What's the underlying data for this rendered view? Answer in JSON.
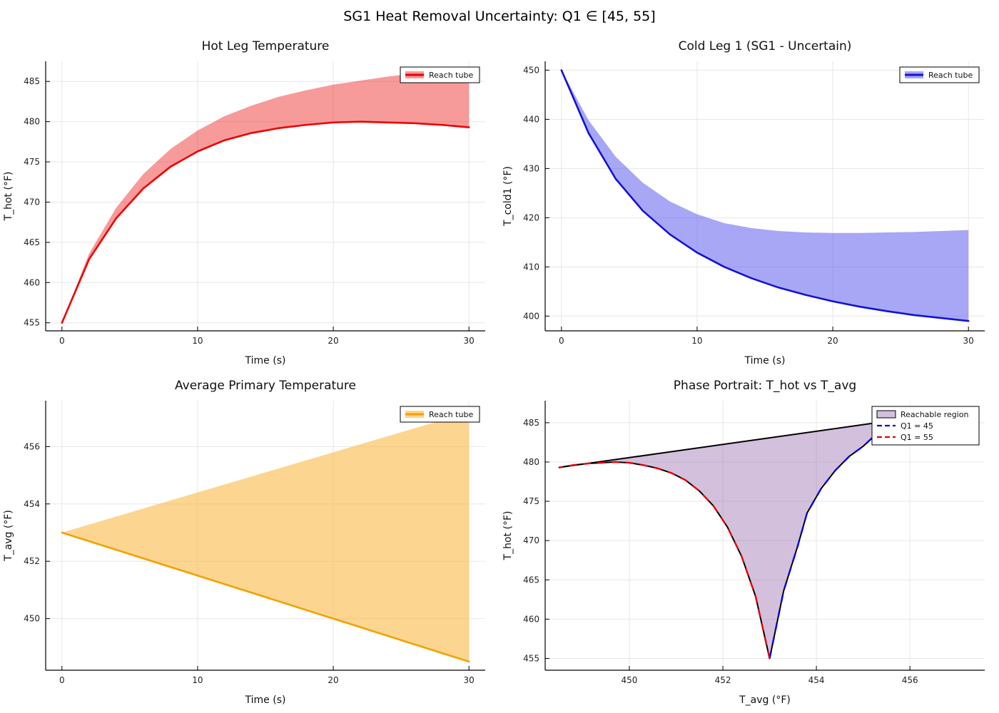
{
  "page": {
    "title": "SG1 Heat Removal Uncertainty: Q1 ∈ [45, 55]"
  },
  "chart_data": [
    {
      "id": "hot-leg",
      "type": "area",
      "title": "Hot Leg Temperature",
      "xlabel": "Time (s)",
      "ylabel": "T_hot (°F)",
      "xlim": [
        -1.2,
        31.2
      ],
      "ylim": [
        454,
        487.5
      ],
      "xticks": [
        0,
        10,
        20,
        30
      ],
      "yticks": [
        455,
        460,
        465,
        470,
        475,
        480,
        485
      ],
      "grid": true,
      "legend": {
        "position": "top-right",
        "entries": [
          {
            "label": "Reach tube",
            "swatch": "band",
            "color": "#ee0000",
            "fill": "rgba(238,30,30,0.45)"
          }
        ]
      },
      "series": [
        {
          "name": "reach-tube-band",
          "kind": "band",
          "x": [
            0,
            2,
            4,
            6,
            8,
            10,
            12,
            14,
            16,
            18,
            20,
            22,
            24,
            26,
            28,
            30
          ],
          "lower": [
            455.0,
            462.9,
            468.0,
            471.7,
            474.4,
            476.3,
            477.7,
            478.6,
            479.2,
            479.6,
            479.9,
            480.0,
            479.9,
            479.8,
            479.6,
            479.3
          ],
          "upper": [
            455.0,
            463.6,
            469.3,
            473.5,
            476.6,
            478.9,
            480.7,
            482.0,
            483.1,
            483.9,
            484.6,
            485.1,
            485.6,
            486.0,
            486.3,
            486.6
          ],
          "line_color": "#ee0000",
          "fill_color": "rgba(238,30,30,0.45)",
          "line_width": 2.6
        }
      ]
    },
    {
      "id": "cold-leg-1",
      "type": "area",
      "title": "Cold Leg 1 (SG1 - Uncertain)",
      "xlabel": "Time (s)",
      "ylabel": "T_cold1 (°F)",
      "xlim": [
        -1.2,
        31.2
      ],
      "ylim": [
        397,
        451.8
      ],
      "xticks": [
        0,
        10,
        20,
        30
      ],
      "yticks": [
        400,
        410,
        420,
        430,
        440,
        450
      ],
      "grid": true,
      "legend": {
        "position": "top-right",
        "entries": [
          {
            "label": "Reach tube",
            "swatch": "band",
            "color": "#1212d6",
            "fill": "rgba(80,80,235,0.5)"
          }
        ]
      },
      "series": [
        {
          "name": "reach-tube-band",
          "kind": "band",
          "x": [
            0,
            2,
            4,
            6,
            8,
            10,
            12,
            14,
            16,
            18,
            20,
            22,
            24,
            26,
            28,
            30
          ],
          "lower": [
            450.0,
            437.2,
            427.9,
            421.4,
            416.6,
            412.9,
            410.0,
            407.7,
            405.8,
            404.3,
            403.0,
            401.9,
            401.0,
            400.2,
            399.6,
            399.0
          ],
          "upper": [
            450.0,
            439.8,
            432.4,
            427.1,
            423.3,
            420.7,
            418.9,
            417.9,
            417.3,
            417.0,
            416.9,
            416.9,
            417.0,
            417.1,
            417.3,
            417.5
          ],
          "line_color": "#1212d6",
          "fill_color": "rgba(80,80,235,0.5)",
          "line_width": 2.6
        }
      ]
    },
    {
      "id": "avg-primary",
      "type": "area",
      "title": "Average Primary Temperature",
      "xlabel": "Time (s)",
      "ylabel": "T_avg (°F)",
      "xlim": [
        -1.2,
        31.2
      ],
      "ylim": [
        448.2,
        457.6
      ],
      "xticks": [
        0,
        10,
        20,
        30
      ],
      "yticks": [
        450,
        452,
        454,
        456
      ],
      "grid": true,
      "legend": {
        "position": "top-right",
        "entries": [
          {
            "label": "Reach tube",
            "swatch": "band",
            "color": "#f2a100",
            "fill": "rgba(250,185,70,0.6)"
          }
        ]
      },
      "series": [
        {
          "name": "reach-tube-band",
          "kind": "band",
          "x": [
            0,
            10,
            20,
            30
          ],
          "lower": [
            453.0,
            451.5,
            450.0,
            448.5
          ],
          "upper": [
            453.0,
            454.4,
            455.8,
            457.2
          ],
          "line_color": "#f2a100",
          "fill_color": "rgba(250,185,70,0.6)",
          "line_width": 2.6
        }
      ]
    },
    {
      "id": "phase-portrait",
      "type": "area",
      "title": "Phase Portrait: T_hot vs T_avg",
      "xlabel": "T_avg (°F)",
      "ylabel": "T_hot (°F)",
      "xlim": [
        448.2,
        457.6
      ],
      "ylim": [
        453.5,
        487.8
      ],
      "xticks": [
        450,
        452,
        454,
        456
      ],
      "yticks": [
        455,
        460,
        465,
        470,
        475,
        480,
        485
      ],
      "grid": true,
      "legend": {
        "position": "top-right",
        "entries": [
          {
            "label": "Reachable region",
            "swatch": "box",
            "color": "#000000",
            "fill": "rgba(150,105,175,0.42)"
          },
          {
            "label": "Q1 = 45",
            "swatch": "dash",
            "color": "#0000e6"
          },
          {
            "label": "Q1 = 55",
            "swatch": "dash",
            "color": "#e60000"
          }
        ]
      },
      "series": [
        {
          "name": "reachable-region",
          "kind": "region",
          "points": [
            [
              448.5,
              479.3
            ],
            [
              448.8,
              479.6
            ],
            [
              449.1,
              479.8
            ],
            [
              449.4,
              479.9
            ],
            [
              449.7,
              480.0
            ],
            [
              450.0,
              479.9
            ],
            [
              450.3,
              479.6
            ],
            [
              450.6,
              479.2
            ],
            [
              450.9,
              478.6
            ],
            [
              451.2,
              477.7
            ],
            [
              451.5,
              476.3
            ],
            [
              451.8,
              474.4
            ],
            [
              452.1,
              471.7
            ],
            [
              452.4,
              468.0
            ],
            [
              452.7,
              462.9
            ],
            [
              453.0,
              455.0
            ],
            [
              453.3,
              463.6
            ],
            [
              453.6,
              469.3
            ],
            [
              453.8,
              473.5
            ],
            [
              454.1,
              476.6
            ],
            [
              454.4,
              478.9
            ],
            [
              454.7,
              480.7
            ],
            [
              455.0,
              482.0
            ],
            [
              455.2,
              483.1
            ],
            [
              455.5,
              483.9
            ],
            [
              455.8,
              484.6
            ],
            [
              456.1,
              485.1
            ],
            [
              456.4,
              485.6
            ],
            [
              456.6,
              486.0
            ],
            [
              456.9,
              486.3
            ],
            [
              457.2,
              486.6
            ]
          ],
          "fill_color": "rgba(150,105,175,0.42)",
          "line_color": "#000000",
          "line_width": 2
        },
        {
          "name": "trajectory-q1-45",
          "kind": "line",
          "dash": [
            11,
            9
          ],
          "color": "#0000e6",
          "line_width": 2.4,
          "points": [
            [
              453.0,
              455.0
            ],
            [
              453.3,
              463.6
            ],
            [
              453.6,
              469.3
            ],
            [
              453.8,
              473.5
            ],
            [
              454.1,
              476.6
            ],
            [
              454.4,
              478.9
            ],
            [
              454.7,
              480.7
            ],
            [
              455.0,
              482.0
            ],
            [
              455.2,
              483.1
            ],
            [
              455.5,
              483.9
            ],
            [
              455.8,
              484.6
            ],
            [
              456.1,
              485.1
            ],
            [
              456.4,
              485.6
            ],
            [
              456.6,
              486.0
            ],
            [
              456.9,
              486.3
            ],
            [
              457.2,
              486.6
            ]
          ]
        },
        {
          "name": "trajectory-q1-55",
          "kind": "line",
          "dash": [
            11,
            9
          ],
          "color": "#e60000",
          "line_width": 2.4,
          "points": [
            [
              453.0,
              455.0
            ],
            [
              452.7,
              462.9
            ],
            [
              452.4,
              468.0
            ],
            [
              452.1,
              471.7
            ],
            [
              451.8,
              474.4
            ],
            [
              451.5,
              476.3
            ],
            [
              451.2,
              477.7
            ],
            [
              450.9,
              478.6
            ],
            [
              450.6,
              479.2
            ],
            [
              450.3,
              479.6
            ],
            [
              450.0,
              479.9
            ],
            [
              449.7,
              480.0
            ],
            [
              449.4,
              479.9
            ],
            [
              449.1,
              479.8
            ],
            [
              448.8,
              479.6
            ],
            [
              448.5,
              479.3
            ]
          ]
        }
      ]
    }
  ]
}
